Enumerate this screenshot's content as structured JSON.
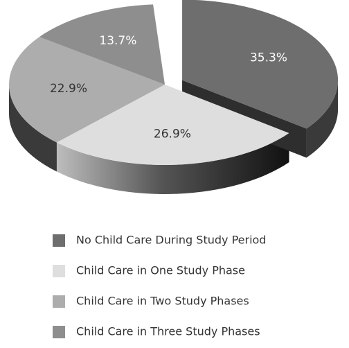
{
  "chart_data": {
    "type": "pie",
    "categories": [
      "No Child Care During Study Period",
      "Child Care in One Study Phase",
      "Child Care in Two Study Phases",
      "Child Care in Three Study Phases"
    ],
    "values": [
      35.3,
      26.9,
      22.9,
      13.7
    ],
    "value_labels": [
      "35.3%",
      "26.9%",
      "22.9%",
      "13.7%"
    ],
    "colors": [
      "#6e6e6e",
      "#dedede",
      "#adadad",
      "#8e8e8e"
    ]
  }
}
